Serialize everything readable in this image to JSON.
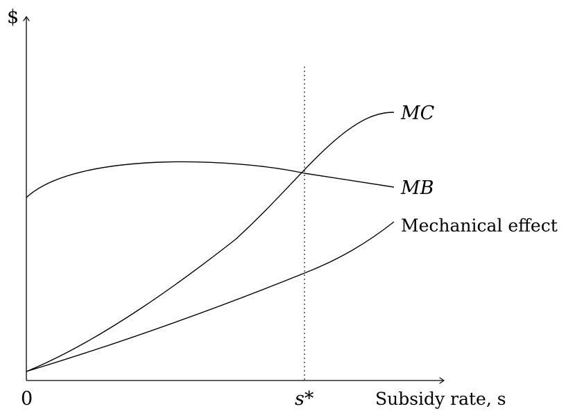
{
  "y_axis_label": "$",
  "x_origin_label": "0",
  "x_axis_label": "Subsidy rate, s",
  "s_star_label": "s*",
  "curves": {
    "mc": {
      "label": "MC"
    },
    "mb": {
      "label": "MB"
    },
    "mechanical": {
      "label": "Mechanical effect"
    }
  }
}
